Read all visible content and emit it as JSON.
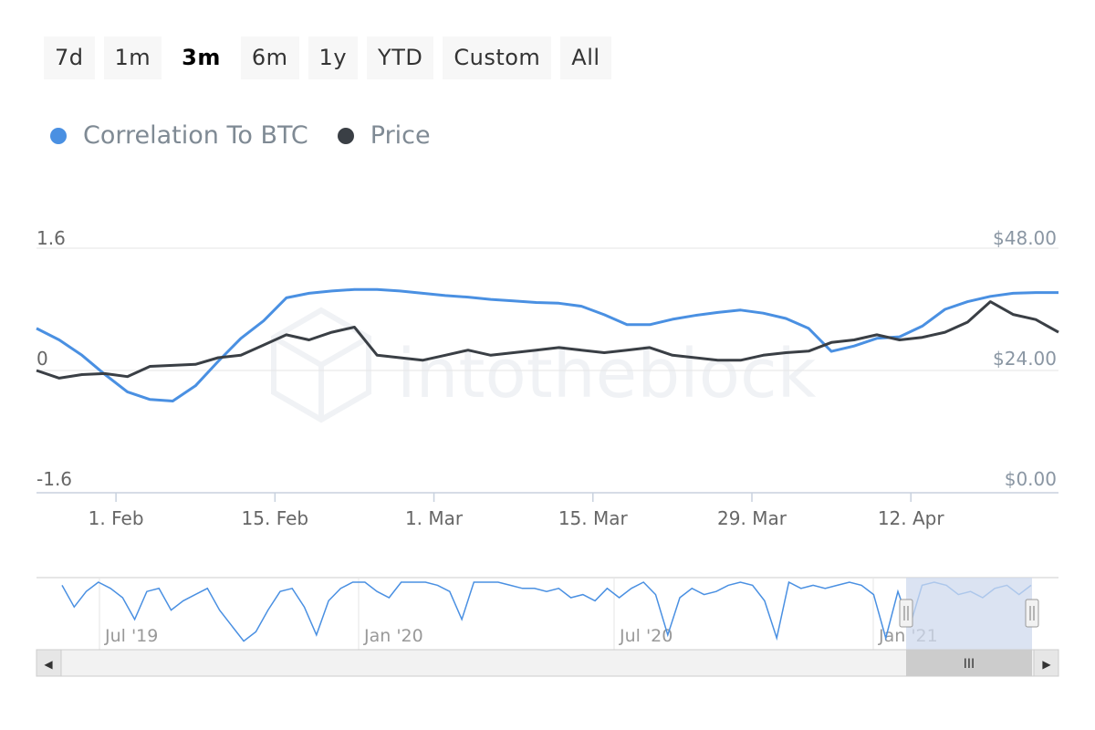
{
  "range_selector": {
    "buttons": [
      "7d",
      "1m",
      "3m",
      "6m",
      "1y",
      "YTD",
      "Custom",
      "All"
    ],
    "active": "3m"
  },
  "legend": [
    {
      "name": "Correlation To BTC",
      "color": "#4a90e2"
    },
    {
      "name": "Price",
      "color": "#3a3f45"
    }
  ],
  "watermark": "intotheblock",
  "chart_data": {
    "type": "line",
    "x_tick_labels": [
      "1. Feb",
      "15. Feb",
      "1. Mar",
      "15. Mar",
      "29. Mar",
      "12. Apr"
    ],
    "left_axis": {
      "ticks": [
        "1.6",
        "0",
        "-1.6"
      ],
      "range": [
        -1.6,
        1.6
      ]
    },
    "right_axis": {
      "ticks": [
        "$48.00",
        "$24.00",
        "$0.00"
      ],
      "range": [
        0,
        48
      ]
    },
    "x_range_days": [
      0,
      90
    ],
    "grid": true,
    "legend_position": "top-left",
    "series": [
      {
        "name": "Correlation To BTC",
        "axis": "left",
        "color": "#4a90e2",
        "x": [
          0,
          2,
          4,
          6,
          8,
          10,
          12,
          14,
          16,
          18,
          20,
          22,
          24,
          26,
          28,
          30,
          32,
          34,
          36,
          38,
          40,
          42,
          44,
          46,
          48,
          50,
          52,
          54,
          56,
          58,
          60,
          62,
          64,
          66,
          68,
          70,
          72,
          74,
          76,
          78,
          80,
          82,
          84,
          86,
          88,
          90
        ],
        "y": [
          0.55,
          0.4,
          0.2,
          -0.05,
          -0.28,
          -0.38,
          -0.4,
          -0.2,
          0.12,
          0.42,
          0.65,
          0.95,
          1.01,
          1.04,
          1.06,
          1.06,
          1.04,
          1.01,
          0.98,
          0.96,
          0.93,
          0.91,
          0.89,
          0.88,
          0.84,
          0.73,
          0.6,
          0.6,
          0.67,
          0.72,
          0.76,
          0.79,
          0.75,
          0.68,
          0.55,
          0.25,
          0.32,
          0.42,
          0.44,
          0.58,
          0.8,
          0.9,
          0.97,
          1.01,
          1.02,
          1.02
        ]
      },
      {
        "name": "Price",
        "axis": "right",
        "color": "#3a3f45",
        "x": [
          0,
          2,
          4,
          6,
          8,
          10,
          12,
          14,
          16,
          18,
          20,
          22,
          24,
          26,
          28,
          30,
          32,
          34,
          36,
          38,
          40,
          42,
          44,
          46,
          48,
          50,
          52,
          54,
          56,
          58,
          60,
          62,
          64,
          66,
          68,
          70,
          72,
          74,
          76,
          78,
          80,
          82,
          84,
          86,
          88,
          90
        ],
        "y": [
          24.0,
          22.5,
          23.2,
          23.4,
          22.8,
          24.8,
          25.0,
          25.2,
          26.5,
          27.0,
          29.0,
          31.0,
          30.0,
          31.5,
          32.5,
          27.0,
          26.5,
          26.0,
          27.0,
          28.0,
          27.0,
          27.5,
          28.0,
          28.5,
          28.0,
          27.5,
          28.0,
          28.5,
          27.0,
          26.5,
          26.0,
          26.0,
          27.0,
          27.5,
          27.8,
          29.5,
          30.0,
          31.0,
          30.0,
          30.5,
          31.5,
          33.5,
          37.5,
          35.0,
          34.0,
          31.5
        ]
      }
    ]
  },
  "navigator": {
    "labels": [
      "Jul '19",
      "Jan '20",
      "Jul '20",
      "Jan '21"
    ],
    "series_y": [
      0.95,
      0.6,
      0.85,
      1.0,
      0.9,
      0.75,
      0.4,
      0.85,
      0.9,
      0.55,
      0.7,
      0.8,
      0.9,
      0.55,
      0.3,
      0.05,
      0.2,
      0.55,
      0.85,
      0.9,
      0.6,
      0.15,
      0.7,
      0.9,
      1.0,
      1.0,
      0.85,
      0.75,
      1.0,
      1.0,
      1.0,
      0.95,
      0.85,
      0.4,
      1.0,
      1.0,
      1.0,
      0.95,
      0.9,
      0.9,
      0.85,
      0.9,
      0.75,
      0.8,
      0.7,
      0.9,
      0.75,
      0.9,
      1.0,
      0.8,
      0.15,
      0.75,
      0.9,
      0.8,
      0.85,
      0.95,
      1.0,
      0.95,
      0.7,
      0.1,
      1.0,
      0.9,
      0.95,
      0.9,
      0.95,
      1.0,
      0.95,
      0.8,
      0.1,
      0.85,
      0.3,
      0.95,
      1.0,
      0.95,
      0.8,
      0.85,
      0.75,
      0.9,
      0.95,
      0.8,
      0.95
    ]
  },
  "scrollbar": {
    "left_arrow": "◀",
    "right_arrow": "▶",
    "grip": "III"
  }
}
